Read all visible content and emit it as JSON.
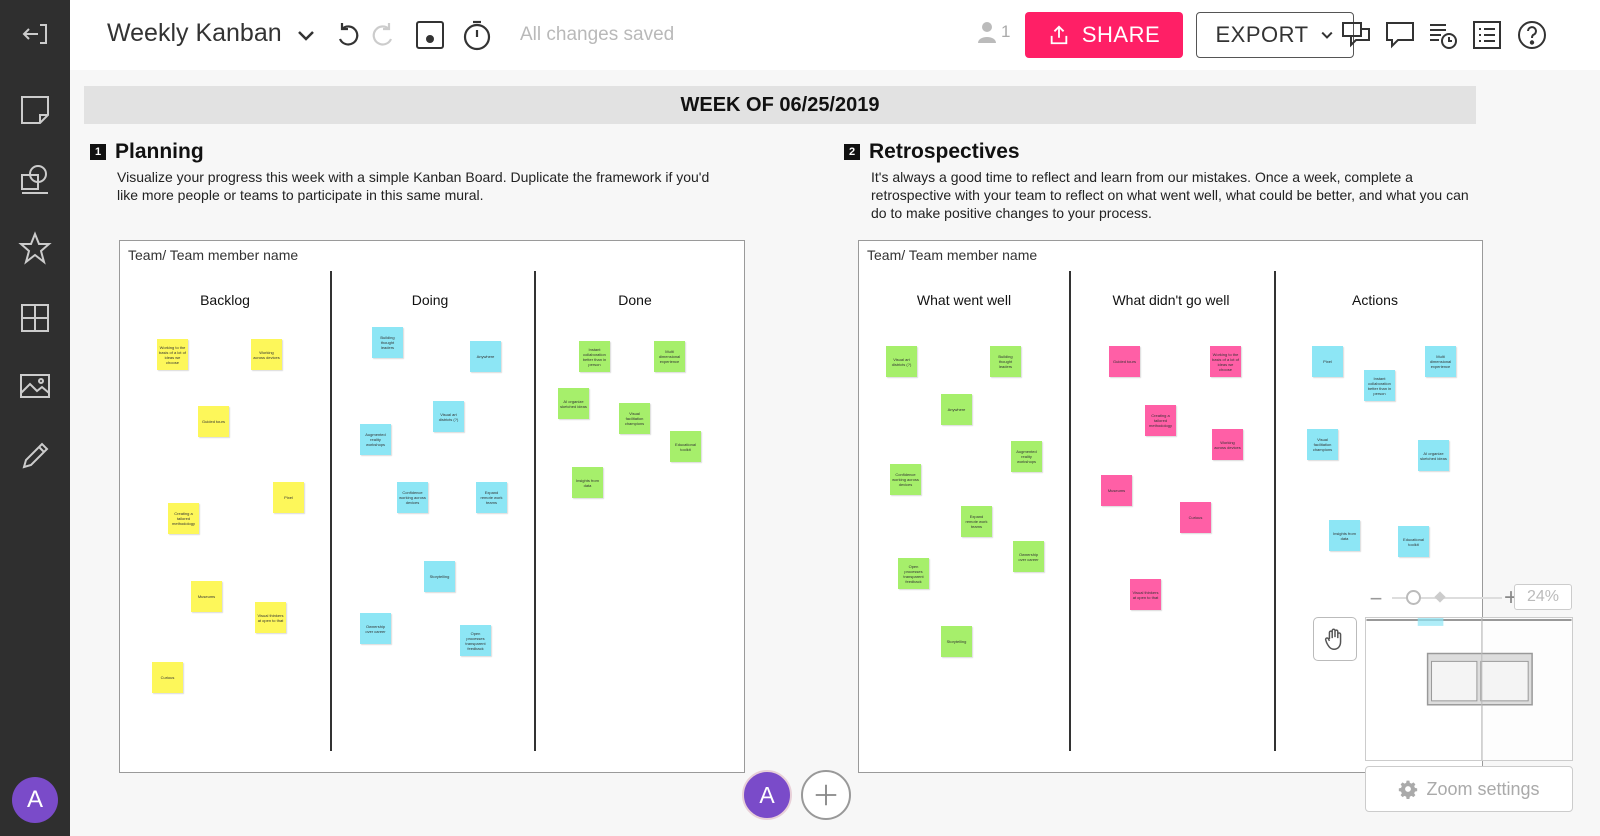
{
  "app": {
    "title": "Weekly Kanban",
    "save_status": "All changes saved",
    "user_count": "1",
    "share_label": "SHARE",
    "export_label": "EXPORT",
    "avatar_initial": "A"
  },
  "canvas": {
    "week_banner": "WEEK OF 06/25/2019",
    "planning": {
      "number": "1",
      "title": "Planning",
      "description": "Visualize your progress this week with a simple Kanban Board. Duplicate the framework if you'd like more people or teams to participate in this same mural.",
      "board_label": "Team/ Team member name",
      "columns": [
        "Backlog",
        "Doing",
        "Done"
      ]
    },
    "retro": {
      "number": "2",
      "title": "Retrospectives",
      "description": "It's always a good time to reflect and learn from our mistakes. Once a week, complete a retrospective with your team to reflect on what went well, what could be better, and what you can do to make positive changes to your process.",
      "board_label": "Team/ Team member name",
      "columns": [
        "What went well",
        "What didn't go well",
        "Actions"
      ]
    },
    "notes": {
      "n1": "Working to the basis of a lot of ideas we choose",
      "n2": "Working across devices",
      "n3": "Guided tours",
      "n4": "Creating a tailored methodology",
      "n5": "Pixel",
      "n6": "Museums",
      "n7": "Visual thinkers at open to that",
      "n8": "Curious",
      "n9": "Building thought leaders",
      "n10": "Anywhere",
      "n11": "Visual art districts (?)",
      "n12": "Augmented reality workshops",
      "n13": "Confidence working across devices",
      "n14": "Expand remote work teams",
      "n15": "Storytelling",
      "n16": "Ownership over career",
      "n17": "Open processes transparent feedback",
      "n18": "Instant collaboration better than in person",
      "n19": "Multi dimensional experience",
      "n20": "AI organize sketched ideas",
      "n21": "Visual facilitation champions",
      "n22": "Educational toolkit",
      "n23": "Insights from data"
    }
  },
  "zoom": {
    "minus": "−",
    "plus": "+",
    "percent": "24%",
    "settings_label": "Zoom settings"
  },
  "colors": {
    "sidebar": "#2f2f2f",
    "share": "#ff1f66",
    "avatar": "#7a4bc9",
    "note_yellow": "#fdf75a",
    "note_blue": "#8de6f5",
    "note_green": "#a6ef6b",
    "note_pink": "#ff5fa6"
  }
}
